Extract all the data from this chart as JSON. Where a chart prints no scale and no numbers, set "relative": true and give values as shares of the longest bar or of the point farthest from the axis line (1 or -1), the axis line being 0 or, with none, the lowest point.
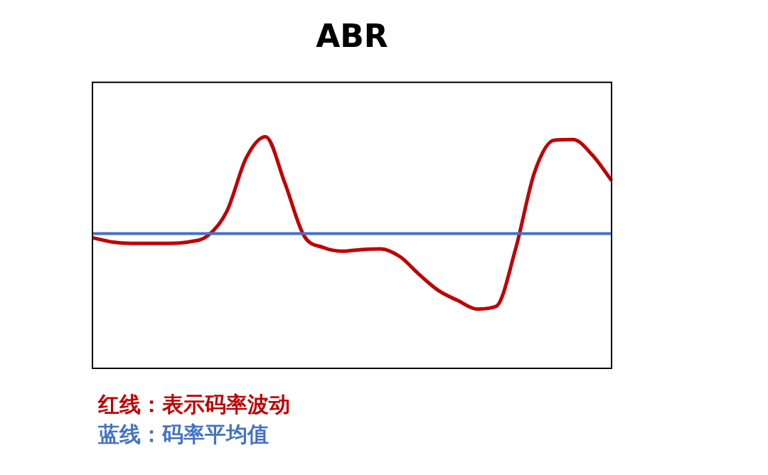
{
  "chart_data": {
    "type": "line",
    "title": "ABR",
    "relative": true,
    "categories": [
      null,
      null,
      null,
      null,
      null,
      null,
      null,
      null,
      null,
      null,
      null,
      null,
      null,
      null,
      null,
      null,
      null,
      null,
      null,
      null,
      null,
      null,
      null,
      null,
      null,
      null,
      null,
      null
    ],
    "series": [
      {
        "color": "#c00000",
        "values": [
          0.564,
          0.546,
          0.54,
          0.54,
          0.54,
          0.546,
          0.573,
          0.68,
          0.909,
          1,
          0.802,
          0.573,
          0.522,
          0.506,
          0.513,
          0.516,
          0.482,
          0.405,
          0.336,
          0.293,
          0.256,
          0.268,
          0.513,
          0.848,
          0.985,
          0.988,
          0.921,
          0.811
        ]
      },
      {
        "color": "#4472c4",
        "values": [
          0.582,
          0.582,
          0.582,
          0.582,
          0.582,
          0.582,
          0.582,
          0.582,
          0.582,
          0.582,
          0.582,
          0.582,
          0.582,
          0.582,
          0.582,
          0.582,
          0.582,
          0.582,
          0.582,
          0.582,
          0.582,
          0.582,
          0.582,
          0.582,
          0.582,
          0.582,
          0.582,
          0.582
        ]
      }
    ],
    "annotations": [
      "红线：表示码率波动",
      "蓝线：码率平均值"
    ],
    "legend": false,
    "marker": "none",
    "line_style": "solid"
  }
}
